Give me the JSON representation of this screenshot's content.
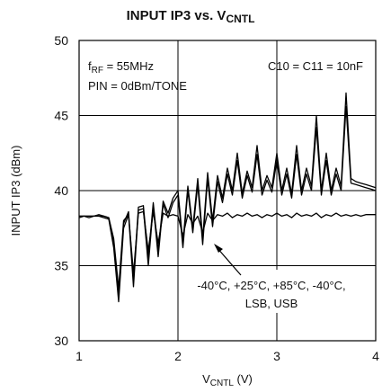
{
  "chart_data": {
    "type": "line",
    "title": {
      "text": "INPUT IP3 vs. V",
      "subscript": "CNTL"
    },
    "x_label": {
      "text": "V",
      "subscript": "CNTL",
      "suffix": " (V)"
    },
    "y_label": "INPUT IP3 (dBm)",
    "annotations": {
      "frequency": {
        "text": "f",
        "subscript": "RF",
        "suffix": " = 55MHz"
      },
      "power": "PIN = 0dBm/TONE",
      "capacitors": "C10 = C11 = 10nF",
      "conditions": [
        "-40°C, +25°C, +85°C, -40°C,",
        "LSB, USB"
      ]
    },
    "xlim": [
      1,
      4
    ],
    "xticks": [
      1,
      2,
      3,
      4
    ],
    "ylim": [
      30,
      50
    ],
    "yticks": [
      30,
      35,
      40,
      45,
      50
    ],
    "grid": true,
    "x": [
      1.0,
      1.05,
      1.1,
      1.15,
      1.2,
      1.25,
      1.3,
      1.35,
      1.4,
      1.45,
      1.5,
      1.55,
      1.6,
      1.65,
      1.7,
      1.75,
      1.8,
      1.85,
      1.9,
      1.95,
      2.0,
      2.05,
      2.1,
      2.15,
      2.2,
      2.25,
      2.3,
      2.35,
      2.4,
      2.45,
      2.5,
      2.55,
      2.6,
      2.65,
      2.7,
      2.75,
      2.8,
      2.85,
      2.9,
      2.95,
      3.0,
      3.05,
      3.1,
      3.15,
      3.2,
      3.25,
      3.3,
      3.35,
      3.4,
      3.45,
      3.5,
      3.55,
      3.6,
      3.65,
      3.7,
      3.75,
      3.8,
      3.85,
      3.9,
      3.95,
      4.0
    ],
    "series": [
      {
        "color": "#000000",
        "values": [
          38.3,
          38.3,
          38.3,
          38.3,
          38.4,
          38.3,
          38.2,
          36.5,
          33.0,
          37.8,
          38.6,
          34.0,
          38.9,
          39.0,
          35.5,
          39.2,
          36.0,
          39.3,
          38.5,
          39.5,
          40.0,
          36.5,
          40.3,
          37.5,
          40.8,
          36.8,
          41.2,
          38.0,
          41.0,
          39.5,
          41.5,
          40.0,
          42.5,
          39.8,
          41.3,
          40.2,
          43.0,
          40.0,
          41.0,
          40.2,
          42.5,
          40.0,
          41.5,
          39.8,
          43.0,
          40.0,
          41.5,
          40.3,
          45.0,
          40.0,
          42.5,
          40.0,
          41.5,
          40.3,
          46.5,
          40.8,
          40.6,
          40.5,
          40.4,
          40.3,
          40.2
        ]
      },
      {
        "color": "#000000",
        "values": [
          38.2,
          38.3,
          38.2,
          38.3,
          38.3,
          38.2,
          38.1,
          36.2,
          32.6,
          37.5,
          38.4,
          33.6,
          38.7,
          38.8,
          35.0,
          39.0,
          35.6,
          39.1,
          38.2,
          39.2,
          39.7,
          36.2,
          40.0,
          37.2,
          40.4,
          36.4,
          40.8,
          37.6,
          40.6,
          39.2,
          41.1,
          39.7,
          42.0,
          39.5,
          41.0,
          39.9,
          42.4,
          39.7,
          40.7,
          39.9,
          42.0,
          39.7,
          41.1,
          39.5,
          42.4,
          39.7,
          41.1,
          40.0,
          44.2,
          39.7,
          42.0,
          39.7,
          41.1,
          40.0,
          45.6,
          40.5,
          40.4,
          40.3,
          40.2,
          40.1,
          40.0
        ]
      },
      {
        "color": "#000000",
        "values": [
          38.3,
          38.3,
          38.3,
          38.3,
          38.3,
          38.3,
          38.2,
          36.8,
          33.5,
          38.0,
          38.4,
          34.5,
          38.5,
          38.6,
          36.0,
          38.6,
          36.5,
          38.5,
          38.3,
          38.4,
          38.3,
          37.0,
          38.4,
          37.8,
          38.3,
          37.2,
          38.5,
          38.0,
          38.4,
          38.3,
          38.5,
          38.2,
          38.4,
          38.3,
          38.5,
          38.3,
          38.4,
          38.2,
          38.4,
          38.3,
          38.5,
          38.3,
          38.4,
          38.2,
          38.5,
          38.3,
          38.4,
          38.3,
          38.5,
          38.2,
          38.4,
          38.3,
          38.5,
          38.3,
          38.4,
          38.3,
          38.4,
          38.3,
          38.4,
          38.4,
          38.4
        ]
      }
    ]
  }
}
